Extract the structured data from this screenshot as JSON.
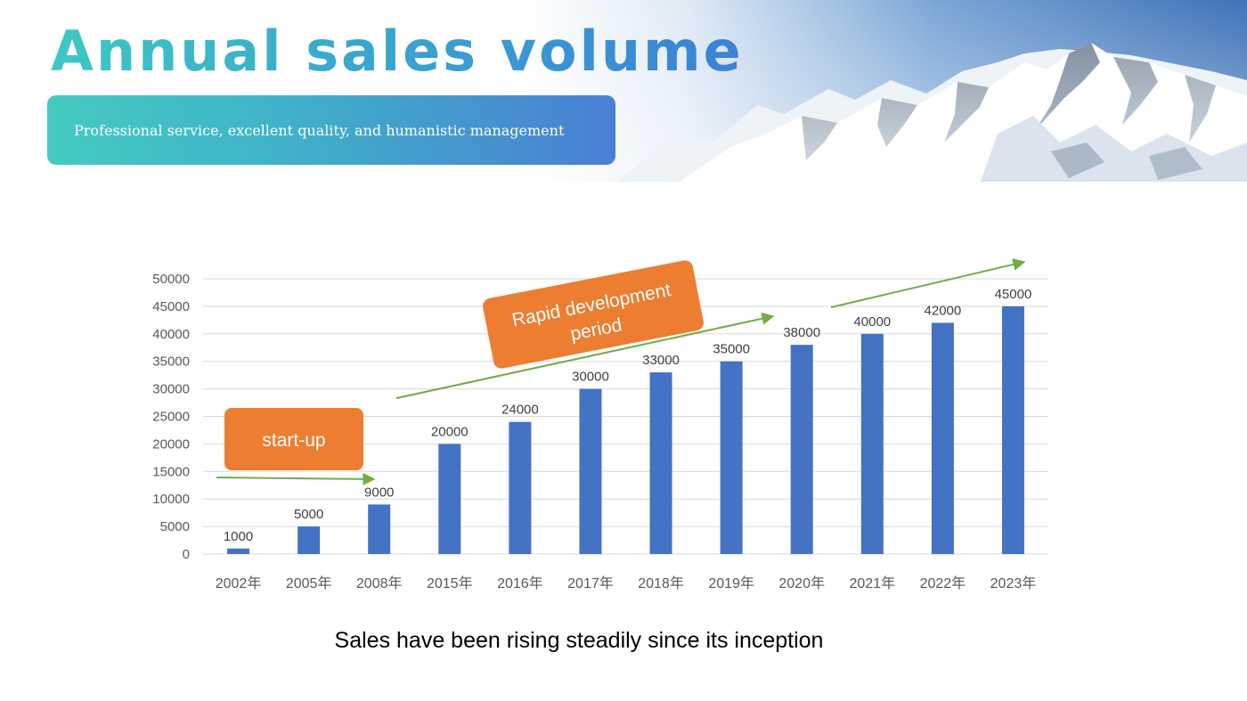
{
  "header": {
    "title": "Annual sales volume",
    "subtitle": "Professional service, excellent quality, and humanistic management"
  },
  "chart_data": {
    "type": "bar",
    "categories": [
      "2002年",
      "2005年",
      "2008年",
      "2015年",
      "2016年",
      "2017年",
      "2018年",
      "2019年",
      "2020年",
      "2021年",
      "2022年",
      "2023年"
    ],
    "series": [
      {
        "values": [
          1000,
          5000,
          9000,
          20000,
          24000,
          30000,
          33000,
          35000,
          38000,
          40000,
          42000,
          45000
        ]
      }
    ],
    "data_labels": [
      "1000",
      "5000",
      "9000",
      "20000",
      "24000",
      "30000",
      "33000",
      "35000",
      "38000",
      "40000",
      "42000",
      "45000"
    ],
    "ylim": [
      0,
      50000
    ],
    "yticks": [
      "0",
      "5000",
      "10000",
      "15000",
      "20000",
      "25000",
      "30000",
      "35000",
      "40000",
      "45000",
      "50000"
    ],
    "grid": true,
    "legend": "none",
    "annotations": {
      "startup": "start-up",
      "rapid_line1": "Rapid development",
      "rapid_line2": "period"
    },
    "colors": {
      "bar": "#4472c4",
      "callout": "#ed7d31",
      "arrow": "#70ad47",
      "grid": "#d9d9d9",
      "tick_text": "#595959"
    }
  },
  "caption": "Sales have been rising steadily since its inception"
}
